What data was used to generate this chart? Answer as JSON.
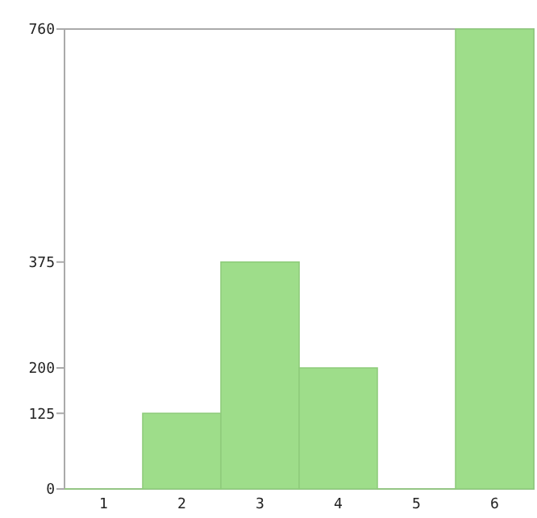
{
  "chart_data": {
    "type": "bar",
    "categories": [
      "1",
      "2",
      "3",
      "4",
      "5",
      "6"
    ],
    "values": [
      0,
      125,
      375,
      200,
      0,
      760
    ],
    "color": "#9edd8a",
    "ylim": [
      0,
      760
    ],
    "yticks": [
      0,
      125,
      200,
      375,
      760
    ],
    "grid": false
  }
}
